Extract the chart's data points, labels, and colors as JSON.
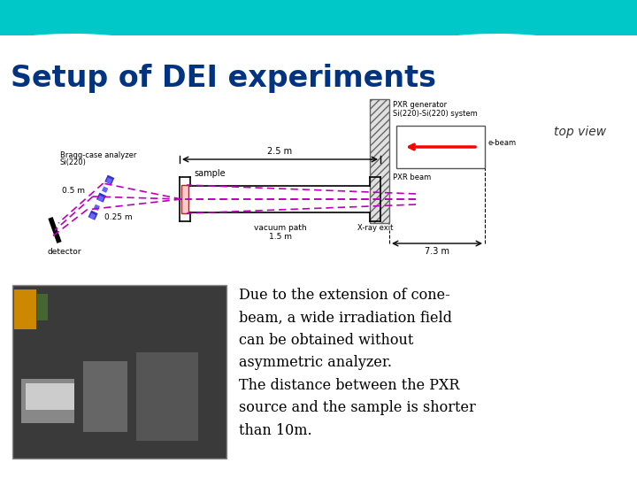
{
  "title": "Setup of DEI experiments",
  "top_view_label": "top view",
  "bg_color": "#ffffff",
  "title_color": "#003380",
  "teal_color": "#00C8C8",
  "description_lines": [
    "Due to the extension of cone-",
    "beam, a wide irradiation field",
    "can be obtained without",
    "asymmetric analyzer.",
    "The distance between the PXR",
    "source and the sample is shorter",
    "than 10m."
  ],
  "diagram": {
    "bragg_label1": "Bragg-case analyzer",
    "bragg_label2": "Si(220)",
    "sample_label": "sample",
    "vacuum_label1": "vacuum path",
    "vacuum_label2": "1.5 m",
    "xray_exit_label": "X-ray exit",
    "pxr_label1": "PXR generator",
    "pxr_label2": "Si(220)-Si(220) system",
    "ebeam_label": "e-beam",
    "pxr_beam_label": "PXR beam",
    "detector_label": "detector",
    "dim_25": "2.5 m",
    "dim_05": "0.5 m",
    "dim_025": "0.25 m",
    "dim_73": "7.3 m"
  }
}
